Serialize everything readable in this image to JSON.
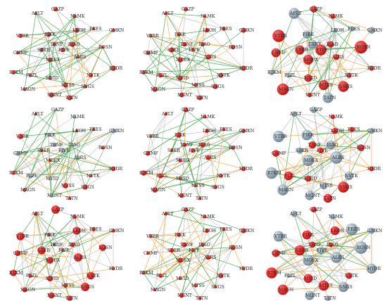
{
  "colors": {
    "edge_green": "#2f9e3a",
    "edge_orange": "#f2a23a",
    "edge_grey": "#b9b9b9",
    "node_red": "#c40f0f",
    "node_red_light": "#ff6a6a",
    "node_blue": "#6f8796",
    "node_blue_light": "#d5e0e7"
  },
  "ticker_labels": [
    "AFLT",
    "GAZP",
    "NLMK",
    "VTBR",
    "PIKK",
    "FEES",
    "GMKN",
    "CHMF",
    "TRNF",
    "IRAO",
    "ROSN",
    "FIVE",
    "LKOH",
    "HYDR",
    "RTKM",
    "PLZL",
    "ALRS",
    "MAGN",
    "MOEX",
    "SBER",
    "MVID",
    "NVTK",
    "MTSS",
    "MGNT",
    "SNGS",
    "TATN"
  ],
  "panels": [
    {
      "id": "r1c1",
      "scheme": "red",
      "sizes": "small"
    },
    {
      "id": "r1c2",
      "scheme": "red",
      "sizes": "small"
    },
    {
      "id": "r1c3",
      "scheme": "mixed",
      "sizes": "large"
    },
    {
      "id": "r2c1",
      "scheme": "mixed",
      "sizes": "small"
    },
    {
      "id": "r2c2",
      "scheme": "red",
      "sizes": "small"
    },
    {
      "id": "r2c3",
      "scheme": "mixed",
      "sizes": "large"
    },
    {
      "id": "r3c1",
      "scheme": "red",
      "sizes": "medium"
    },
    {
      "id": "r3c2",
      "scheme": "red",
      "sizes": "small"
    },
    {
      "id": "r3c3",
      "scheme": "mixed",
      "sizes": "large"
    }
  ]
}
